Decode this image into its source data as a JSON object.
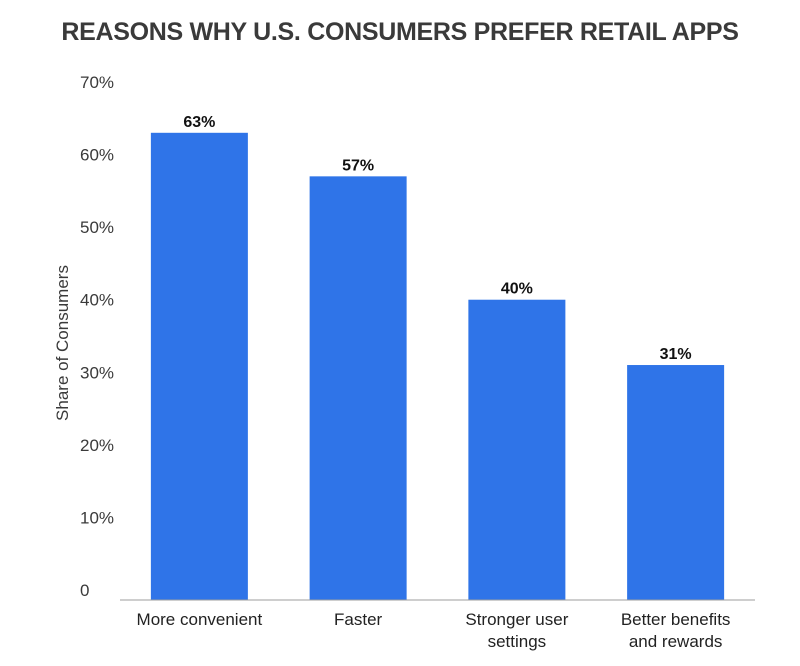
{
  "chart_data": {
    "type": "bar",
    "title": "REASONS WHY U.S. CONSUMERS PREFER RETAIL APPS",
    "ylabel": "Share of Consumers",
    "xlabel": "",
    "categories": [
      [
        "More convenient"
      ],
      [
        "Faster"
      ],
      [
        "Stronger user",
        "settings"
      ],
      [
        "Better benefits",
        "and rewards"
      ]
    ],
    "values": [
      63,
      57,
      40,
      31
    ],
    "data_labels": [
      "63%",
      "57%",
      "40%",
      "31%"
    ],
    "ylim": [
      0,
      70
    ],
    "yticks": [
      0,
      10,
      20,
      30,
      40,
      50,
      60,
      70
    ],
    "ytick_labels": [
      "0",
      "10%",
      "20%",
      "30%",
      "40%",
      "50%",
      "60%",
      "70%"
    ],
    "grid": false,
    "legend": "none",
    "bar_color": "#2f74e8"
  }
}
